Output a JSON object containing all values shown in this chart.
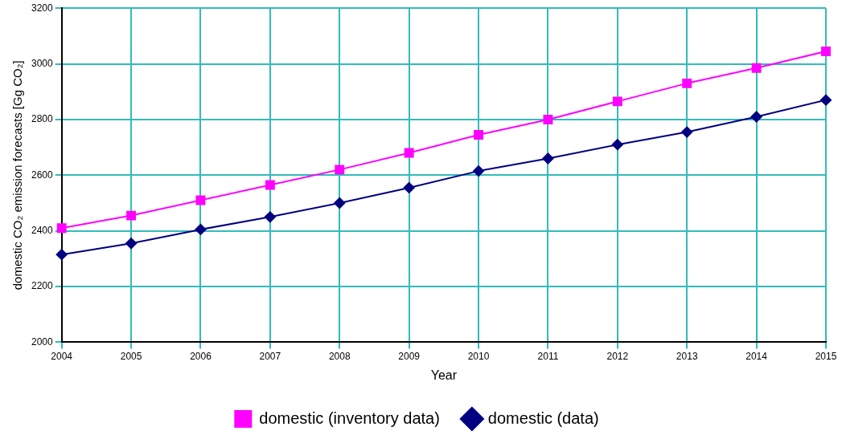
{
  "chart_data": {
    "type": "line",
    "xlabel": "Year",
    "ylabel": "domestic CO₂ emission forecasts [Gg CO₂]",
    "categories": [
      "2004",
      "2005",
      "2006",
      "2007",
      "2008",
      "2009",
      "2010",
      "2011",
      "2012",
      "2013",
      "2014",
      "2015"
    ],
    "series": [
      {
        "name": "domestic (inventory data)",
        "color": "#ff00ff",
        "marker": "square",
        "values": [
          2410,
          2455,
          2510,
          2565,
          2620,
          2680,
          2745,
          2800,
          2865,
          2930,
          2985,
          3045
        ]
      },
      {
        "name": "domestic (data)",
        "color": "#000080",
        "marker": "diamond",
        "values": [
          2315,
          2355,
          2405,
          2450,
          2500,
          2555,
          2615,
          2660,
          2710,
          2755,
          2810,
          2870
        ]
      }
    ],
    "ylim": [
      2000,
      3200
    ],
    "yticks": [
      2000,
      2200,
      2400,
      2600,
      2800,
      3000,
      3200
    ],
    "grid": true,
    "legend": "bottom"
  }
}
